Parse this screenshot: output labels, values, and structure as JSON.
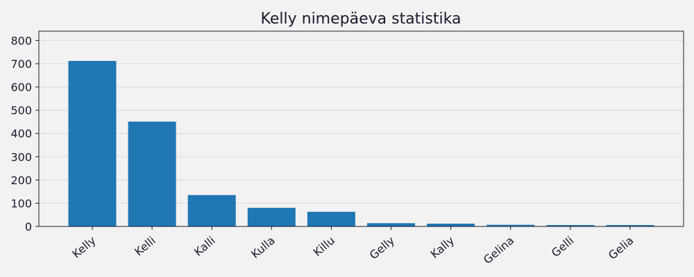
{
  "chart_data": {
    "type": "bar",
    "title": "Kelly nimepäeva statistika",
    "xlabel": "",
    "ylabel": "",
    "categories": [
      "Kelly",
      "Kelli",
      "Kalli",
      "Kulla",
      "Killu",
      "Gelly",
      "Kally",
      "Gelina",
      "Gelli",
      "Gelia"
    ],
    "values": [
      712,
      451,
      135,
      80,
      63,
      14,
      12,
      7,
      6,
      6
    ],
    "ylim": [
      0,
      840
    ],
    "yticks": [
      0,
      100,
      200,
      300,
      400,
      500,
      600,
      700,
      800
    ],
    "grid": "horizontal",
    "colors": {
      "bar": "#1f77b4",
      "background": "#f2f2f2",
      "grid": "#d9d9d9",
      "text": "#1a1a2e"
    }
  }
}
